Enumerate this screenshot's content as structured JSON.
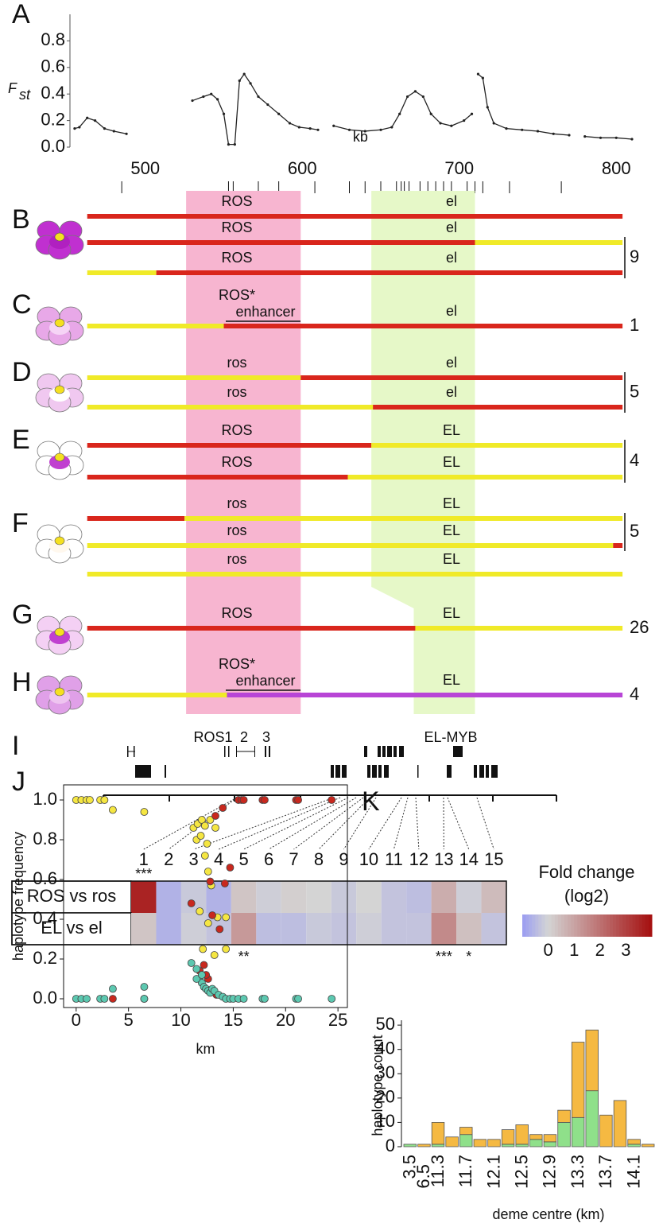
{
  "panel_labels": [
    "A",
    "I",
    "J",
    "K"
  ],
  "chart_data": [
    {
      "type": "line",
      "ylabel": "F",
      "ylabel_sub": "st",
      "x_annotation": "kb",
      "xlim": [
        452,
        809
      ],
      "ylim": [
        0,
        1
      ],
      "xticks": [
        500,
        600,
        700,
        800
      ],
      "yticks": [
        {
          "value": 0,
          "label": "0.0"
        },
        0.2,
        0.4,
        0.6,
        0.8
      ],
      "series": [
        {
          "color": "#222222",
          "x": [
            455,
            458,
            463,
            468,
            474,
            480,
            488,
            510,
            530,
            537,
            542,
            546,
            550,
            553,
            557,
            560,
            563,
            567,
            572,
            578,
            585,
            592,
            598,
            605,
            610,
            615,
            620,
            630,
            640,
            650,
            657,
            662,
            667,
            672,
            677,
            682,
            688,
            695,
            703,
            708,
            710,
            712,
            715,
            718,
            722,
            730,
            740,
            750,
            760,
            770,
            775,
            780,
            790,
            800,
            810
          ],
          "values": [
            0.14,
            0.15,
            0.22,
            0.2,
            0.14,
            0.12,
            0.1,
            null,
            0.35,
            0.38,
            0.4,
            0.36,
            0.25,
            0.02,
            0.02,
            0.5,
            0.55,
            0.48,
            0.38,
            0.32,
            0.25,
            0.18,
            0.15,
            0.14,
            0.13,
            null,
            0.16,
            0.13,
            0.12,
            0.13,
            0.15,
            0.25,
            0.38,
            0.42,
            0.38,
            0.25,
            0.18,
            0.16,
            0.2,
            0.25,
            null,
            0.55,
            0.52,
            0.3,
            0.18,
            0.14,
            0.13,
            0.12,
            0.1,
            0.09,
            null,
            0.08,
            0.07,
            0.07,
            0.06
          ]
        }
      ],
      "marker_positions": [
        485,
        553,
        556,
        572,
        585,
        608,
        630,
        640,
        650,
        660,
        663,
        665,
        668,
        675,
        680,
        685,
        690,
        695,
        705,
        710,
        715,
        732,
        765
      ]
    },
    {
      "type": "heatmap",
      "categories": [
        "1",
        "2",
        "3",
        "4",
        "5",
        "6",
        "7",
        "8",
        "9",
        "10",
        "11",
        "12",
        "13",
        "14",
        "15"
      ],
      "rows": [
        "ROS vs ros",
        "EL vs el"
      ],
      "values": [
        [
          3.6,
          -0.6,
          -0.2,
          -0.6,
          0.3,
          -0.1,
          0.1,
          0,
          -0.2,
          0,
          -0.3,
          -0.4,
          0.8,
          -0.1,
          0.5
        ],
        [
          0.3,
          -0.6,
          -0.1,
          -0.3,
          1.2,
          -0.4,
          -0.4,
          -0.2,
          -0.3,
          -0.1,
          -0.3,
          -0.3,
          1.5,
          0.4,
          -0.3
        ]
      ],
      "significance": [
        {
          "row": 0,
          "column": 0,
          "text": "***"
        },
        {
          "row": 1,
          "column": 4,
          "text": "**"
        },
        {
          "row": 1,
          "column": 12,
          "text": "***"
        },
        {
          "row": 1,
          "column": 13,
          "text": "*"
        }
      ],
      "colorbar_title": [
        "Fold change",
        "(log2)"
      ],
      "clim": [
        -1,
        4
      ],
      "cticks": [
        0,
        1,
        2,
        3
      ],
      "cmap": [
        "#9a9cf2",
        "#d4d4d4",
        "#a50f0f"
      ]
    },
    {
      "type": "scatter",
      "xlabel": "km",
      "ylabel": "haplotype frequency",
      "xlim": [
        -1.2,
        25.9
      ],
      "ylim": [
        -0.044,
        1.076
      ],
      "xticks": [
        0,
        5,
        10,
        15,
        20,
        25
      ],
      "yticks": [
        {
          "value": 0,
          "label": "0.0"
        },
        0.2,
        0.4,
        0.6,
        0.8,
        {
          "value": 1,
          "label": "1.0"
        }
      ],
      "series": [
        {
          "color": "#f5e642",
          "x": [
            0,
            0.5,
            1,
            1.3,
            2.3,
            2.7,
            3.5,
            6.5,
            11.2,
            11.6,
            12,
            12.3,
            12.8,
            11.5,
            11.9,
            12.5,
            12.3,
            13.3,
            12.6,
            11.8,
            12.6,
            13.5,
            14.3,
            12.1,
            13.2,
            14.3,
            12.9
          ],
          "values": [
            1,
            1,
            1,
            1,
            1,
            1,
            0.95,
            0.94,
            0.86,
            0.88,
            0.9,
            0.87,
            0.9,
            0.8,
            0.82,
            0.78,
            0.72,
            0.86,
            0.64,
            0.44,
            0.38,
            0.41,
            0.41,
            0.25,
            0.22,
            0.25,
            0.57
          ]
        },
        {
          "color": "#c8281e",
          "x": [
            6.5,
            3.5,
            11,
            12.8,
            13.3,
            14,
            15.5,
            15.8,
            17.8,
            18,
            21,
            21.2,
            24.4,
            14.7,
            14.2,
            13,
            13.7,
            12.2,
            12.6,
            11.8,
            12.4,
            13.4,
            16
          ],
          "values": [
            0,
            0,
            0.48,
            0.59,
            0.92,
            0.96,
            1,
            1,
            1,
            1,
            1,
            1,
            1,
            0.66,
            0.58,
            0.42,
            0.35,
            0.17,
            0.1,
            0.14,
            0.12,
            0.02,
            1
          ]
        },
        {
          "color": "#5cc8b0",
          "x": [
            0,
            0.5,
            1,
            2.3,
            2.7,
            3.5,
            6.5,
            6.5,
            11,
            11.5,
            11.8,
            12,
            12.2,
            12.4,
            12.6,
            12.8,
            13,
            13.2,
            13.6,
            14,
            14.3,
            14.7,
            15,
            15.5,
            16,
            17.8,
            18,
            21,
            21.2,
            24.4,
            11.5,
            12
          ],
          "values": [
            0,
            0,
            0,
            0,
            0,
            0.05,
            0.06,
            0,
            0.18,
            0.15,
            0.1,
            0.08,
            0.06,
            0.05,
            0.04,
            0.03,
            0.05,
            0.04,
            0.02,
            0.01,
            0,
            0,
            0,
            0,
            0,
            0,
            0,
            0,
            0,
            0,
            0.1,
            0.12
          ]
        }
      ]
    },
    {
      "type": "stacked_bar",
      "xlabel": "deme centre (km)",
      "ylabel": "haplotype count",
      "categories": [
        "3.5",
        "6.5",
        "11.3",
        null,
        "11.7",
        null,
        "12.1",
        null,
        "12.5",
        null,
        "12.9",
        null,
        "13.3",
        null,
        "13.7",
        null,
        "14.1",
        null
      ],
      "ylim": [
        0,
        52
      ],
      "yticks": [
        0,
        10,
        20,
        30,
        40,
        50
      ],
      "series": [
        {
          "color": "#8fe08a",
          "values": [
            1,
            0,
            1,
            0,
            5,
            0,
            0,
            1,
            1,
            3,
            2,
            10,
            12,
            23,
            0,
            0,
            1,
            0
          ]
        },
        {
          "color": "#f5b942",
          "values": [
            0,
            1,
            9,
            4,
            3,
            3,
            3,
            6,
            8,
            2,
            3,
            5,
            31,
            25,
            13,
            19,
            2,
            1
          ]
        }
      ]
    }
  ],
  "haplotypes": {
    "ros_region": [
      526,
      599
    ],
    "el_region": [
      644,
      710
    ],
    "el_region_narrow": [
      671,
      710
    ],
    "groups": [
      {
        "letter": "B",
        "count": 9,
        "rows": [
          {
            "ros": "ROS",
            "el": "el",
            "segments": [
              {
                "start": 463,
                "end": 804,
                "color": "#d9261c"
              }
            ]
          },
          {
            "ros": "ROS",
            "el": "el",
            "segments": [
              {
                "start": 463,
                "end": 710,
                "color": "#d9261c"
              },
              {
                "start": 710,
                "end": 804,
                "color": "#f0ea28"
              }
            ]
          },
          {
            "ros": "ROS",
            "el": "el",
            "segments": [
              {
                "start": 463,
                "end": 507,
                "color": "#f0ea28"
              },
              {
                "start": 507,
                "end": 804,
                "color": "#d9261c"
              }
            ]
          }
        ]
      },
      {
        "letter": "C",
        "count": 1,
        "rows": [
          {
            "ros": "ROS*",
            "enhancer": "enhancer",
            "el": "el",
            "segments": [
              {
                "start": 463,
                "end": 550,
                "color": "#f0ea28"
              },
              {
                "start": 550,
                "end": 804,
                "color": "#d9261c"
              }
            ]
          }
        ]
      },
      {
        "letter": "D",
        "count": 5,
        "rows": [
          {
            "ros": "ros",
            "el": "el",
            "segments": [
              {
                "start": 463,
                "end": 599,
                "color": "#f0ea28"
              },
              {
                "start": 599,
                "end": 804,
                "color": "#d9261c"
              }
            ]
          },
          {
            "ros": "ros",
            "el": "el",
            "segments": [
              {
                "start": 463,
                "end": 645,
                "color": "#f0ea28"
              },
              {
                "start": 645,
                "end": 804,
                "color": "#d9261c"
              }
            ]
          }
        ]
      },
      {
        "letter": "E",
        "count": 4,
        "rows": [
          {
            "ros": "ROS",
            "el": "EL",
            "segments": [
              {
                "start": 463,
                "end": 644,
                "color": "#d9261c"
              },
              {
                "start": 644,
                "end": 804,
                "color": "#f0ea28"
              }
            ]
          },
          {
            "ros": "ROS",
            "el": "EL",
            "segments": [
              {
                "start": 463,
                "end": 629,
                "color": "#d9261c"
              },
              {
                "start": 629,
                "end": 804,
                "color": "#f0ea28"
              }
            ]
          }
        ]
      },
      {
        "letter": "F",
        "count": 5,
        "rows": [
          {
            "ros": "ros",
            "el": "EL",
            "segments": [
              {
                "start": 463,
                "end": 525,
                "color": "#d9261c"
              },
              {
                "start": 525,
                "end": 804,
                "color": "#f0ea28"
              }
            ]
          },
          {
            "ros": "ros",
            "el": "EL",
            "segments": [
              {
                "start": 463,
                "end": 798,
                "color": "#f0ea28"
              },
              {
                "start": 798,
                "end": 804,
                "color": "#d9261c"
              }
            ]
          },
          {
            "ros": "ros",
            "el": "EL",
            "segments": [
              {
                "start": 463,
                "end": 804,
                "color": "#f0ea28"
              }
            ]
          }
        ]
      },
      {
        "letter": "G",
        "count": 26,
        "rows": [
          {
            "ros": "ROS",
            "el": "EL",
            "segments": [
              {
                "start": 463,
                "end": 672,
                "color": "#d9261c"
              },
              {
                "start": 672,
                "end": 804,
                "color": "#f0ea28"
              }
            ]
          }
        ]
      },
      {
        "letter": "H",
        "count": 4,
        "rows": [
          {
            "ros": "ROS*",
            "enhancer": "enhancer",
            "el": "EL",
            "segments": [
              {
                "start": 463,
                "end": 552,
                "color": "#f0ea28"
              },
              {
                "start": 552,
                "end": 804,
                "color": "#b845d6"
              }
            ]
          }
        ]
      }
    ]
  },
  "gene_map": {
    "labels": [
      "ROS1",
      "2",
      "3",
      "EL-MYB"
    ]
  }
}
